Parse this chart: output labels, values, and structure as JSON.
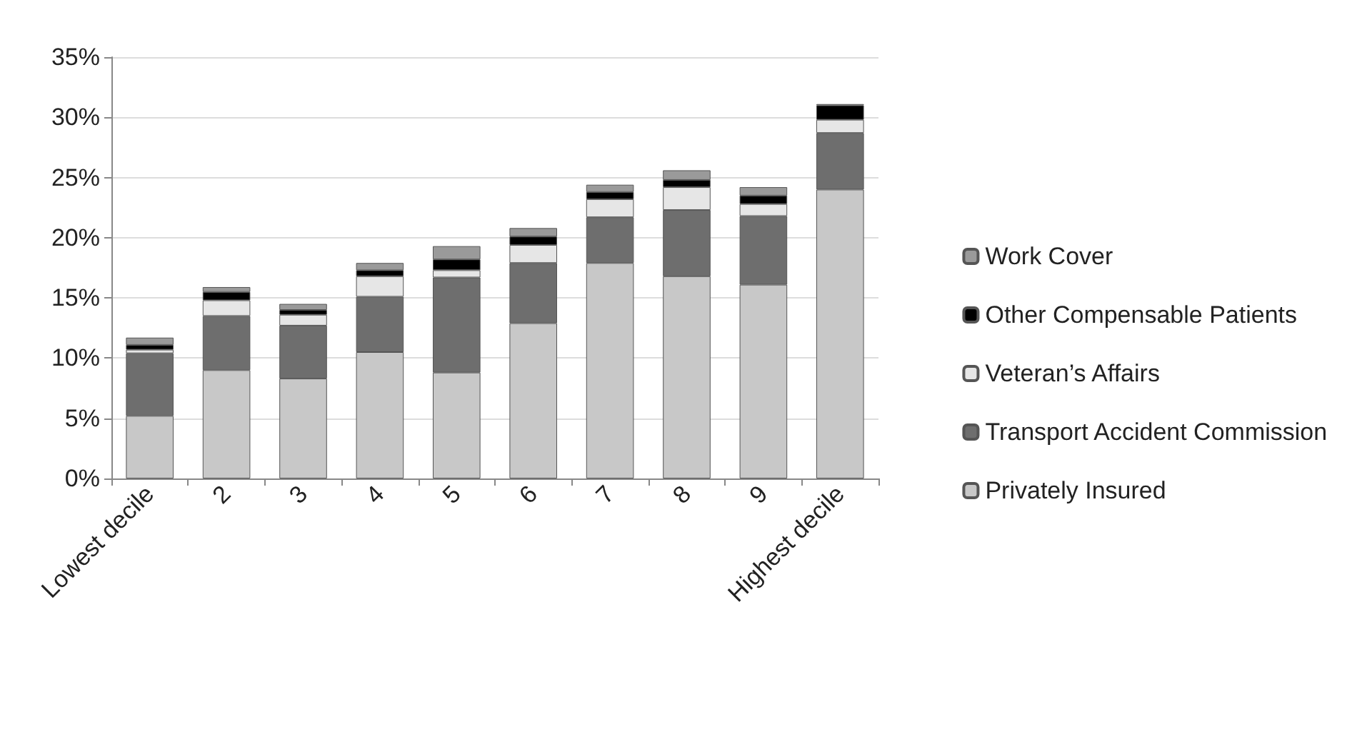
{
  "chart_data": {
    "type": "bar",
    "stacked": true,
    "categories": [
      "Lowest decile",
      "2",
      "3",
      "4",
      "5",
      "6",
      "7",
      "8",
      "9",
      "Highest decile"
    ],
    "series": [
      {
        "name": "Privately Insured",
        "color": "#c8c8c8",
        "values": [
          5.2,
          9.0,
          8.3,
          10.5,
          8.8,
          12.9,
          17.9,
          16.8,
          16.1,
          24.0
        ]
      },
      {
        "name": "Transport Accident Commission",
        "color": "#6e6e6e",
        "values": [
          5.2,
          4.5,
          4.4,
          4.6,
          7.9,
          5.0,
          3.8,
          5.5,
          5.7,
          4.7
        ]
      },
      {
        "name": "Veteran’s Affairs",
        "color": "#e6e6e6",
        "values": [
          0.3,
          1.3,
          0.9,
          1.7,
          0.6,
          1.5,
          1.5,
          1.9,
          1.0,
          1.1
        ]
      },
      {
        "name": "Other Compensable Patients",
        "color": "#000000",
        "values": [
          0.4,
          0.7,
          0.4,
          0.5,
          0.9,
          0.7,
          0.6,
          0.6,
          0.7,
          1.2
        ]
      },
      {
        "name": "Work Cover",
        "color": "#9a9a9a",
        "values": [
          0.6,
          0.4,
          0.5,
          0.6,
          1.1,
          0.7,
          0.6,
          0.8,
          0.7,
          0.1
        ]
      }
    ],
    "ylim": [
      0,
      35
    ],
    "yticks": [
      {
        "value": 0,
        "label": "0%"
      },
      {
        "value": 5,
        "label": "5%"
      },
      {
        "value": 10,
        "label": "10%"
      },
      {
        "value": 15,
        "label": "15%"
      },
      {
        "value": 20,
        "label": "20%"
      },
      {
        "value": 25,
        "label": "25%"
      },
      {
        "value": 30,
        "label": "30%"
      },
      {
        "value": 35,
        "label": "35%"
      }
    ],
    "grid": "y",
    "legend": "right"
  }
}
